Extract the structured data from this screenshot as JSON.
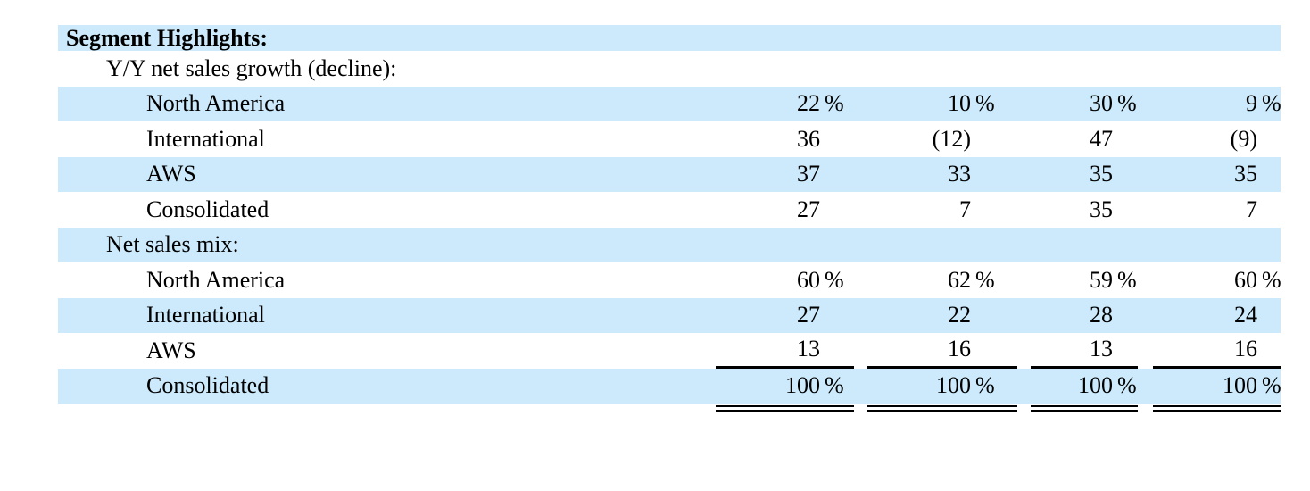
{
  "colors": {
    "highlight": "#cceafb",
    "background": "#ffffff",
    "text": "#000000",
    "rule": "#000000"
  },
  "table": {
    "columns_count": 4,
    "rows": [
      {
        "label": "Segment Highlights:",
        "indent": 0,
        "bold": true,
        "shaded": true,
        "values": []
      },
      {
        "label": "Y/Y net sales growth (decline):",
        "indent": 1,
        "bold": false,
        "shaded": false,
        "values": []
      },
      {
        "label": "North America",
        "indent": 2,
        "bold": false,
        "shaded": true,
        "values": [
          {
            "n": "22",
            "s": "%"
          },
          {
            "n": "10",
            "s": "%"
          },
          {
            "n": "30",
            "s": "%"
          },
          {
            "n": "9",
            "s": "%"
          }
        ]
      },
      {
        "label": "International",
        "indent": 2,
        "bold": false,
        "shaded": false,
        "values": [
          {
            "n": "36",
            "s": ""
          },
          {
            "n": "(12)",
            "s": ""
          },
          {
            "n": "47",
            "s": ""
          },
          {
            "n": "(9)",
            "s": ""
          }
        ]
      },
      {
        "label": "AWS",
        "indent": 2,
        "bold": false,
        "shaded": true,
        "values": [
          {
            "n": "37",
            "s": ""
          },
          {
            "n": "33",
            "s": ""
          },
          {
            "n": "35",
            "s": ""
          },
          {
            "n": "35",
            "s": ""
          }
        ]
      },
      {
        "label": "Consolidated",
        "indent": 2,
        "bold": false,
        "shaded": false,
        "values": [
          {
            "n": "27",
            "s": ""
          },
          {
            "n": "7",
            "s": ""
          },
          {
            "n": "35",
            "s": ""
          },
          {
            "n": "7",
            "s": ""
          }
        ]
      },
      {
        "label": "Net sales mix:",
        "indent": 1,
        "bold": false,
        "shaded": true,
        "values": []
      },
      {
        "label": "North America",
        "indent": 2,
        "bold": false,
        "shaded": false,
        "values": [
          {
            "n": "60",
            "s": "%"
          },
          {
            "n": "62",
            "s": "%"
          },
          {
            "n": "59",
            "s": "%"
          },
          {
            "n": "60",
            "s": "%"
          }
        ]
      },
      {
        "label": "International",
        "indent": 2,
        "bold": false,
        "shaded": true,
        "values": [
          {
            "n": "27",
            "s": ""
          },
          {
            "n": "22",
            "s": ""
          },
          {
            "n": "28",
            "s": ""
          },
          {
            "n": "24",
            "s": ""
          }
        ]
      },
      {
        "label": "AWS",
        "indent": 2,
        "bold": false,
        "shaded": false,
        "rule_below": "single",
        "values": [
          {
            "n": "13",
            "s": ""
          },
          {
            "n": "16",
            "s": ""
          },
          {
            "n": "13",
            "s": ""
          },
          {
            "n": "16",
            "s": ""
          }
        ]
      },
      {
        "label": "Consolidated",
        "indent": 2,
        "bold": false,
        "shaded": true,
        "rule_below": "double",
        "values": [
          {
            "n": "100",
            "s": "%"
          },
          {
            "n": "100",
            "s": "%"
          },
          {
            "n": "100",
            "s": "%"
          },
          {
            "n": "100",
            "s": "%"
          }
        ]
      }
    ]
  }
}
